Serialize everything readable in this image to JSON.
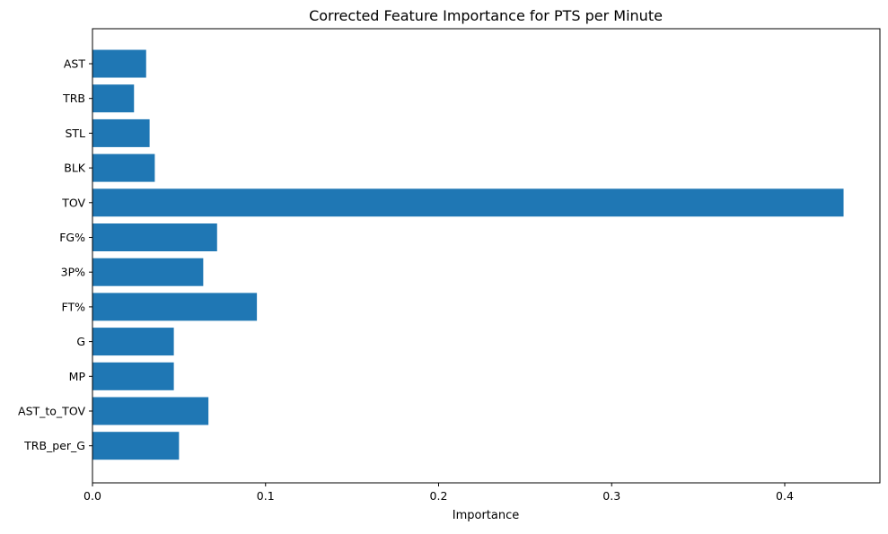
{
  "chart_data": {
    "type": "bar",
    "orientation": "horizontal",
    "title": "Corrected Feature Importance for PTS per Minute",
    "xlabel": "Importance",
    "ylabel": "",
    "xlim": [
      0,
      0.455
    ],
    "xticks": [
      0,
      0.1,
      0.2,
      0.3,
      0.4
    ],
    "xtick_labels": [
      "0.0",
      "0.1",
      "0.2",
      "0.3",
      "0.4"
    ],
    "categories": [
      "AST",
      "TRB",
      "STL",
      "BLK",
      "TOV",
      "FG%",
      "3P%",
      "FT%",
      "G",
      "MP",
      "AST_to_TOV",
      "TRB_per_G"
    ],
    "values": [
      0.031,
      0.024,
      0.033,
      0.036,
      0.434,
      0.072,
      0.064,
      0.095,
      0.047,
      0.047,
      0.067,
      0.05
    ],
    "bar_color": "#1f77b4",
    "grid": false,
    "legend": "none"
  }
}
